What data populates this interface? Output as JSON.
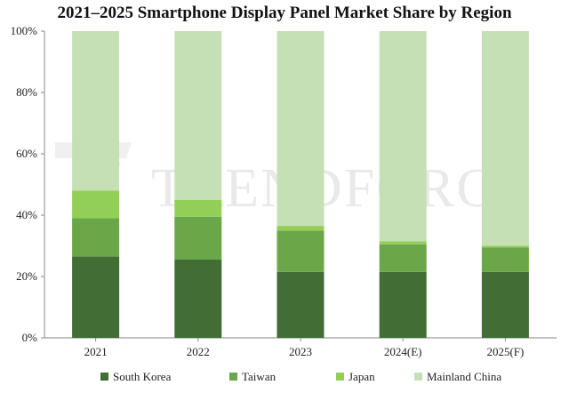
{
  "chart_data": {
    "type": "bar",
    "stacked": true,
    "title": "2021–2025 Smartphone Display Panel Market Share by Region",
    "xlabel": "",
    "ylabel": "",
    "categories": [
      "2021",
      "2022",
      "2023",
      "2024(E)",
      "2025(F)"
    ],
    "ylim": [
      0,
      100
    ],
    "yticks": [
      "0%",
      "20%",
      "40%",
      "60%",
      "80%",
      "100%"
    ],
    "grid": false,
    "legend_position": "bottom",
    "series": [
      {
        "name": "South Korea",
        "color": "#426d35",
        "values": [
          26.5,
          25.5,
          21.5,
          21.5,
          21.5
        ]
      },
      {
        "name": "Taiwan",
        "color": "#6aa748",
        "values": [
          12.5,
          14.0,
          13.5,
          9.0,
          8.0
        ]
      },
      {
        "name": "Japan",
        "color": "#92cf57",
        "values": [
          9.0,
          5.5,
          1.5,
          1.0,
          0.5
        ]
      },
      {
        "name": "Mainland China",
        "color": "#c5e0b4",
        "values": [
          52.0,
          55.0,
          63.5,
          68.5,
          70.0
        ]
      }
    ]
  },
  "watermark": {
    "text": "TRENDFORCE"
  }
}
